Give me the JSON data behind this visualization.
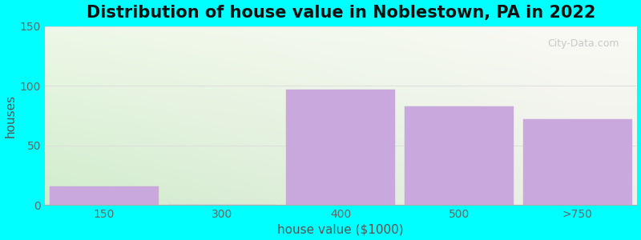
{
  "title": "Distribution of house value in Noblestown, PA in 2022",
  "categories": [
    "150",
    "300",
    "400",
    "500",
    ">750"
  ],
  "values": [
    16,
    0,
    97,
    83,
    72
  ],
  "bar_color": "#c9a8de",
  "bar_edgecolor": "#c9a8de",
  "xlabel": "house value ($1000)",
  "ylabel": "houses",
  "ylim": [
    0,
    150
  ],
  "yticks": [
    0,
    50,
    100,
    150
  ],
  "figure_bg": "#00ffff",
  "axes_bg_topleft": "#e8f5e0",
  "axes_bg_topright": "#f5f5ee",
  "axes_bg_bottomleft": "#d0eccc",
  "axes_bg_bottomright": "#efefea",
  "grid_color": "#dddddd",
  "title_fontsize": 15,
  "axis_label_fontsize": 11,
  "tick_fontsize": 10,
  "watermark": "City-Data.com"
}
